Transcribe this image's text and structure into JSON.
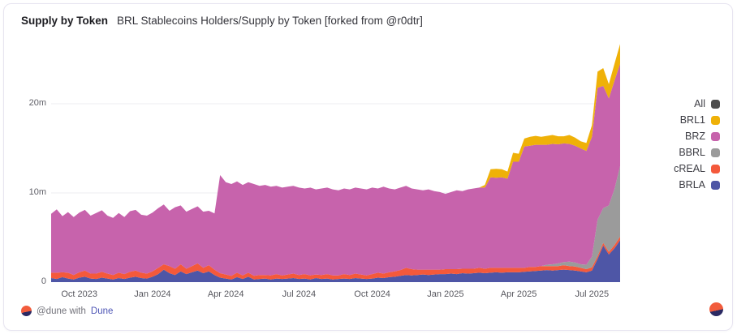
{
  "header": {
    "title": "Supply by Token",
    "subtitle": "BRL Stablecoins Holders/Supply by Token [forked from @r0dtr]"
  },
  "footer": {
    "attribution_prefix": "@dune with",
    "attribution_link": "Dune"
  },
  "colors": {
    "all": "#4d4d4d",
    "brl1": "#efb108",
    "brz": "#c763ac",
    "bbrl": "#9b9b9b",
    "creal": "#f4593b",
    "brla": "#4e56a6",
    "gridline": "#ececf0",
    "card_border": "#e7e4f0",
    "link": "#4d55b5"
  },
  "legend": [
    {
      "key": "all",
      "label": "All",
      "color": "#4d4d4d"
    },
    {
      "key": "brl1",
      "label": "BRL1",
      "color": "#efb108"
    },
    {
      "key": "brz",
      "label": "BRZ",
      "color": "#c763ac"
    },
    {
      "key": "bbrl",
      "label": "BBRL",
      "color": "#9b9b9b"
    },
    {
      "key": "creal",
      "label": "cREAL",
      "color": "#f4593b"
    },
    {
      "key": "brla",
      "label": "BRLA",
      "color": "#4e56a6"
    }
  ],
  "chart_data": {
    "type": "area",
    "stacked": true,
    "title": "Supply by Token",
    "unit": "millions of tokens",
    "x_unit": "weeks, late Aug 2023 to early Aug 2025",
    "grid": "horizontal only",
    "legend_position": "right",
    "legend_order": [
      "All",
      "BRL1",
      "BRZ",
      "BBRL",
      "cREAL",
      "BRLA"
    ],
    "ylim": [
      0,
      27.45
    ],
    "y_ticks": [
      {
        "value": 0,
        "label": "0"
      },
      {
        "value": 10,
        "label": "10m"
      },
      {
        "value": 20,
        "label": "20m"
      }
    ],
    "x_ticks": [
      {
        "week": 5,
        "label": "Oct 2023"
      },
      {
        "week": 18,
        "label": "Jan 2024"
      },
      {
        "week": 31,
        "label": "Apr 2024"
      },
      {
        "week": 44,
        "label": "Jul 2024"
      },
      {
        "week": 57,
        "label": "Oct 2024"
      },
      {
        "week": 70,
        "label": "Jan 2025"
      },
      {
        "week": 83,
        "label": "Apr 2025"
      },
      {
        "week": 96,
        "label": "Jul 2025"
      }
    ],
    "series": [
      {
        "name": "BRLA",
        "color": "#4e56a6",
        "values": [
          0.45,
          0.35,
          0.55,
          0.4,
          0.3,
          0.5,
          0.6,
          0.4,
          0.35,
          0.5,
          0.4,
          0.3,
          0.45,
          0.35,
          0.5,
          0.6,
          0.45,
          0.4,
          0.6,
          0.9,
          1.4,
          1.0,
          0.8,
          1.2,
          0.9,
          1.1,
          1.3,
          1.0,
          1.2,
          0.8,
          0.5,
          0.4,
          0.3,
          0.55,
          0.35,
          0.6,
          0.3,
          0.35,
          0.4,
          0.3,
          0.4,
          0.35,
          0.4,
          0.45,
          0.35,
          0.4,
          0.3,
          0.45,
          0.35,
          0.4,
          0.3,
          0.35,
          0.4,
          0.35,
          0.45,
          0.4,
          0.35,
          0.4,
          0.5,
          0.45,
          0.55,
          0.6,
          0.7,
          0.8,
          0.75,
          0.8,
          0.85,
          0.8,
          0.85,
          0.9,
          0.9,
          0.95,
          0.9,
          1.0,
          0.95,
          1.0,
          1.05,
          1.0,
          1.05,
          1.1,
          1.05,
          1.1,
          1.1,
          1.1,
          1.15,
          1.2,
          1.25,
          1.3,
          1.35,
          1.3,
          1.35,
          1.4,
          1.35,
          1.3,
          1.2,
          1.1,
          1.3,
          2.6,
          4.1,
          3.1,
          3.8,
          4.7
        ]
      },
      {
        "name": "cREAL",
        "color": "#f4593b",
        "values": [
          0.6,
          0.7,
          0.55,
          0.65,
          0.5,
          0.6,
          0.7,
          0.55,
          0.6,
          0.65,
          0.55,
          0.5,
          0.6,
          0.55,
          0.65,
          0.7,
          0.6,
          0.55,
          0.6,
          0.7,
          0.6,
          0.8,
          0.7,
          0.8,
          0.6,
          0.7,
          0.8,
          0.6,
          0.7,
          0.6,
          0.5,
          0.45,
          0.4,
          0.5,
          0.4,
          0.45,
          0.4,
          0.45,
          0.4,
          0.45,
          0.5,
          0.4,
          0.45,
          0.5,
          0.45,
          0.5,
          0.45,
          0.4,
          0.45,
          0.5,
          0.45,
          0.4,
          0.5,
          0.45,
          0.5,
          0.45,
          0.4,
          0.5,
          0.55,
          0.5,
          0.55,
          0.6,
          0.65,
          0.8,
          0.7,
          0.6,
          0.55,
          0.6,
          0.55,
          0.5,
          0.55,
          0.5,
          0.55,
          0.5,
          0.55,
          0.5,
          0.55,
          0.5,
          0.55,
          0.5,
          0.55,
          0.5,
          0.5,
          0.5,
          0.45,
          0.5,
          0.45,
          0.5,
          0.45,
          0.5,
          0.45,
          0.5,
          0.45,
          0.45,
          0.4,
          0.35,
          0.35,
          0.3,
          0.3,
          0.3,
          0.35,
          0.4
        ]
      },
      {
        "name": "BBRL",
        "color": "#9b9b9b",
        "values": [
          0,
          0,
          0,
          0,
          0,
          0,
          0,
          0,
          0,
          0,
          0,
          0,
          0,
          0,
          0,
          0,
          0,
          0,
          0,
          0,
          0,
          0,
          0,
          0,
          0,
          0,
          0,
          0,
          0,
          0,
          0,
          0,
          0,
          0,
          0,
          0,
          0,
          0,
          0,
          0,
          0,
          0,
          0,
          0,
          0,
          0,
          0,
          0,
          0,
          0,
          0,
          0,
          0,
          0,
          0,
          0,
          0,
          0,
          0,
          0,
          0,
          0,
          0,
          0,
          0,
          0,
          0,
          0,
          0,
          0,
          0,
          0,
          0,
          0,
          0,
          0,
          0,
          0,
          0,
          0,
          0,
          0,
          0,
          0,
          0,
          0,
          0,
          0,
          0.15,
          0.2,
          0.3,
          0.35,
          0.5,
          0.45,
          0.4,
          0.5,
          1.2,
          4.1,
          3.9,
          5.2,
          6.3,
          7.9
        ]
      },
      {
        "name": "BRZ",
        "color": "#c763ac",
        "values": [
          6.6,
          7.1,
          6.3,
          6.8,
          6.5,
          6.7,
          6.8,
          6.5,
          6.8,
          6.9,
          6.5,
          6.4,
          6.7,
          6.4,
          6.8,
          6.8,
          6.5,
          6.5,
          6.6,
          6.7,
          6.7,
          6.2,
          6.9,
          6.6,
          6.4,
          6.4,
          6.4,
          6.3,
          6.1,
          6.3,
          11.0,
          10.35,
          10.3,
          10.25,
          10.15,
          10.15,
          10.3,
          10.0,
          10.1,
          9.95,
          9.9,
          9.85,
          9.85,
          9.85,
          9.8,
          9.6,
          9.85,
          9.55,
          9.7,
          9.7,
          9.65,
          9.55,
          9.6,
          9.6,
          9.65,
          9.65,
          9.65,
          9.7,
          9.45,
          9.75,
          9.4,
          9.2,
          9.25,
          9.2,
          9.05,
          9.0,
          8.9,
          9.0,
          8.8,
          8.7,
          8.45,
          8.65,
          8.85,
          8.7,
          8.9,
          9.0,
          9.0,
          9.1,
          10.15,
          10.1,
          10.15,
          10.0,
          11.9,
          11.9,
          13.6,
          13.6,
          13.7,
          13.6,
          13.45,
          13.5,
          13.35,
          13.3,
          13.2,
          13.1,
          13.0,
          12.75,
          13.45,
          14.8,
          13.7,
          12.0,
          12.15,
          11.5
        ]
      },
      {
        "name": "BRL1",
        "color": "#efb108",
        "values": [
          0,
          0,
          0,
          0,
          0,
          0,
          0,
          0,
          0,
          0,
          0,
          0,
          0,
          0,
          0,
          0,
          0,
          0,
          0,
          0,
          0,
          0,
          0,
          0,
          0,
          0,
          0,
          0,
          0,
          0,
          0,
          0,
          0,
          0,
          0,
          0,
          0,
          0,
          0,
          0,
          0,
          0,
          0,
          0,
          0,
          0,
          0,
          0,
          0,
          0,
          0,
          0,
          0,
          0,
          0,
          0,
          0,
          0,
          0,
          0,
          0,
          0,
          0,
          0,
          0,
          0,
          0,
          0,
          0,
          0,
          0,
          0,
          0,
          0,
          0,
          0,
          0,
          0.3,
          0.9,
          1.0,
          0.9,
          0.8,
          1.0,
          0.9,
          0.9,
          1.0,
          1.0,
          0.9,
          1.0,
          1.0,
          0.9,
          0.8,
          1.0,
          0.9,
          0.8,
          0.9,
          1.3,
          1.8,
          2.0,
          1.6,
          1.9,
          2.2
        ]
      }
    ]
  }
}
